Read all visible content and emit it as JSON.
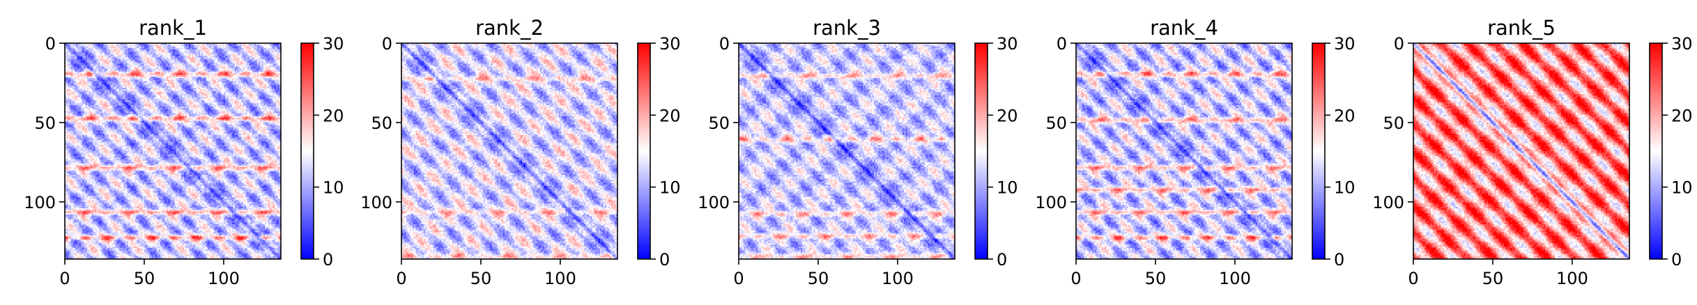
{
  "chart_data": [
    {
      "type": "heatmap",
      "title": "rank_1",
      "matrix_size": 136,
      "x_ticks": [
        0,
        50,
        100
      ],
      "y_ticks": [
        0,
        50,
        100
      ],
      "xlim": [
        0,
        136
      ],
      "ylim": [
        136,
        0
      ],
      "colorbar": {
        "range": [
          0,
          30
        ],
        "ticks": [
          0,
          10,
          20,
          30
        ],
        "colormap": "bwr"
      },
      "pattern": {
        "diagonal": "low",
        "level": 12,
        "stripe_rows": [
          19,
          47,
          78,
          106,
          122
        ],
        "stripe_strength": 14,
        "block_period": 14,
        "block_amp": 4
      }
    },
    {
      "type": "heatmap",
      "title": "rank_2",
      "matrix_size": 136,
      "x_ticks": [
        0,
        50,
        100
      ],
      "y_ticks": [
        0,
        50,
        100
      ],
      "xlim": [
        0,
        136
      ],
      "ylim": [
        136,
        0
      ],
      "colorbar": {
        "range": [
          0,
          30
        ],
        "ticks": [
          0,
          10,
          20,
          30
        ],
        "colormap": "bwr"
      },
      "pattern": {
        "diagonal": "low",
        "level": 13,
        "stripe_rows": [
          22,
          106,
          134
        ],
        "stripe_strength": 8,
        "block_period": 16,
        "block_amp": 4
      }
    },
    {
      "type": "heatmap",
      "title": "rank_3",
      "matrix_size": 136,
      "x_ticks": [
        0,
        50,
        100
      ],
      "y_ticks": [
        0,
        50,
        100
      ],
      "xlim": [
        0,
        136
      ],
      "ylim": [
        136,
        0
      ],
      "colorbar": {
        "range": [
          0,
          30
        ],
        "ticks": [
          0,
          10,
          20,
          30
        ],
        "colormap": "bwr"
      },
      "pattern": {
        "diagonal": "low",
        "level": 12,
        "stripe_rows": [
          20,
          60,
          107,
          121,
          134
        ],
        "stripe_strength": 10,
        "block_period": 14,
        "block_amp": 3
      }
    },
    {
      "type": "heatmap",
      "title": "rank_4",
      "matrix_size": 136,
      "x_ticks": [
        0,
        50,
        100
      ],
      "y_ticks": [
        0,
        50,
        100
      ],
      "xlim": [
        0,
        136
      ],
      "ylim": [
        136,
        0
      ],
      "colorbar": {
        "range": [
          0,
          30
        ],
        "ticks": [
          0,
          10,
          20,
          30
        ],
        "colormap": "bwr"
      },
      "pattern": {
        "diagonal": "low",
        "level": 12,
        "stripe_rows": [
          19,
          48,
          78,
          92,
          106,
          122
        ],
        "stripe_strength": 13,
        "block_period": 14,
        "block_amp": 4
      }
    },
    {
      "type": "heatmap",
      "title": "rank_5",
      "matrix_size": 136,
      "x_ticks": [
        0,
        50,
        100
      ],
      "y_ticks": [
        0,
        50,
        100
      ],
      "xlim": [
        0,
        136
      ],
      "ylim": [
        136,
        0
      ],
      "colorbar": {
        "range": [
          0,
          30
        ],
        "ticks": [
          0,
          10,
          20,
          30
        ],
        "colormap": "bwr"
      },
      "pattern": {
        "diagonal": "low",
        "level": 22,
        "stripe_rows": [],
        "stripe_strength": 0,
        "block_period": 17,
        "block_amp": 7
      }
    }
  ]
}
